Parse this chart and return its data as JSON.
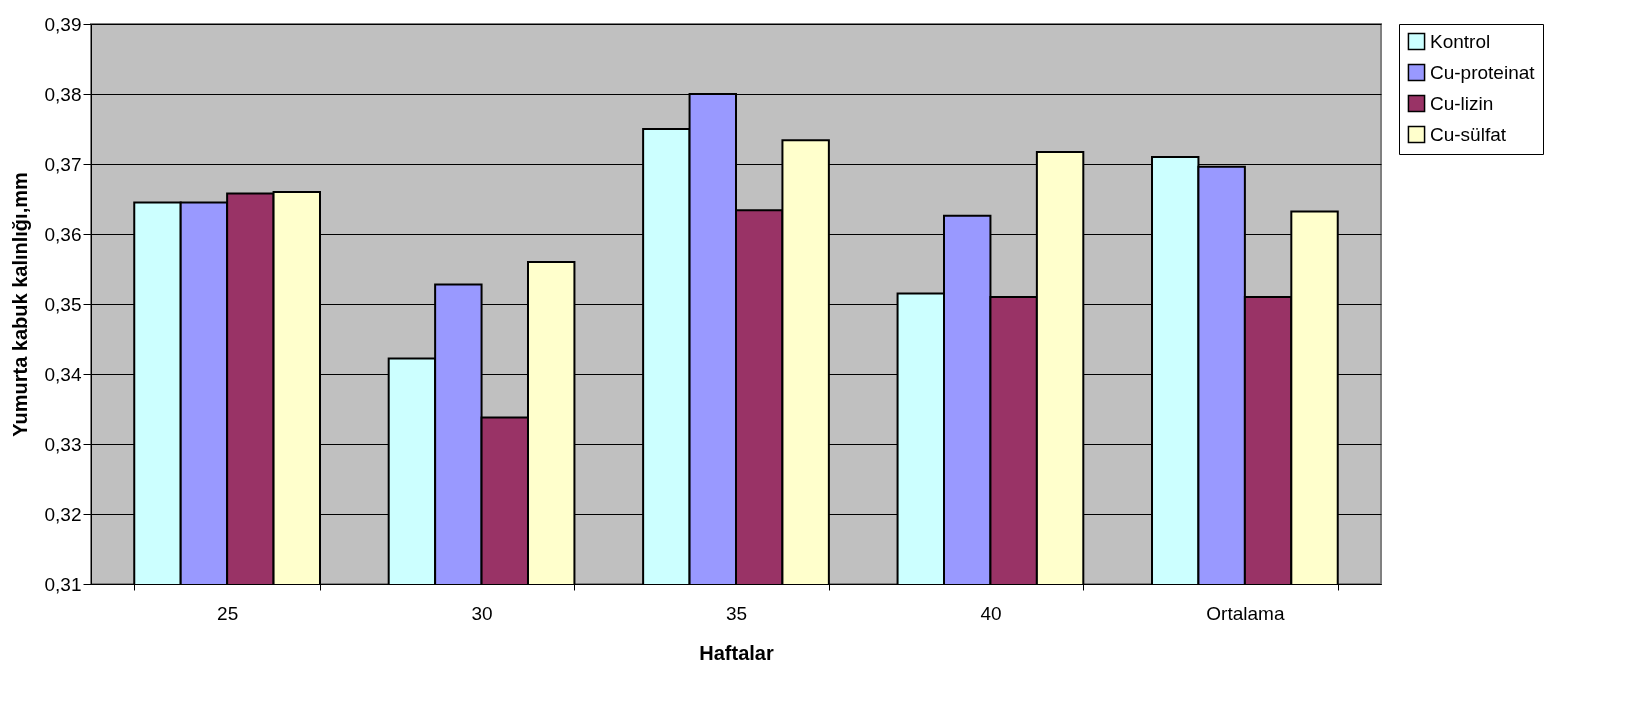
{
  "chart_data": {
    "type": "bar",
    "xlabel": "Haftalar",
    "ylabel": "Yumurta kabuk kalınlığı,mm",
    "categories": [
      "25",
      "30",
      "35",
      "40",
      "Ortalama"
    ],
    "series": [
      {
        "name": "Kontrol",
        "color": "#ccffff",
        "values": [
          0.3645,
          0.3422,
          0.375,
          0.3515,
          0.371
        ]
      },
      {
        "name": "Cu-proteinat",
        "color": "#9999ff",
        "values": [
          0.3645,
          0.3528,
          0.38,
          0.3626,
          0.3696
        ]
      },
      {
        "name": "Cu-lizin",
        "color": "#993366",
        "values": [
          0.3658,
          0.3338,
          0.3634,
          0.351,
          0.351
        ]
      },
      {
        "name": "Cu-sülfat",
        "color": "#ffffcc",
        "values": [
          0.366,
          0.356,
          0.3734,
          0.3717,
          0.3632
        ]
      }
    ],
    "ylim": [
      0.31,
      0.39
    ],
    "yticks": [
      {
        "value": 0.31,
        "label": "0,31"
      },
      {
        "value": 0.32,
        "label": "0,32"
      },
      {
        "value": 0.33,
        "label": "0,33"
      },
      {
        "value": 0.34,
        "label": "0,34"
      },
      {
        "value": 0.35,
        "label": "0,35"
      },
      {
        "value": 0.36,
        "label": "0,36"
      },
      {
        "value": 0.37,
        "label": "0,37"
      },
      {
        "value": 0.38,
        "label": "0,38"
      },
      {
        "value": 0.39,
        "label": "0,39"
      }
    ],
    "grid": "y",
    "legend": "right"
  }
}
